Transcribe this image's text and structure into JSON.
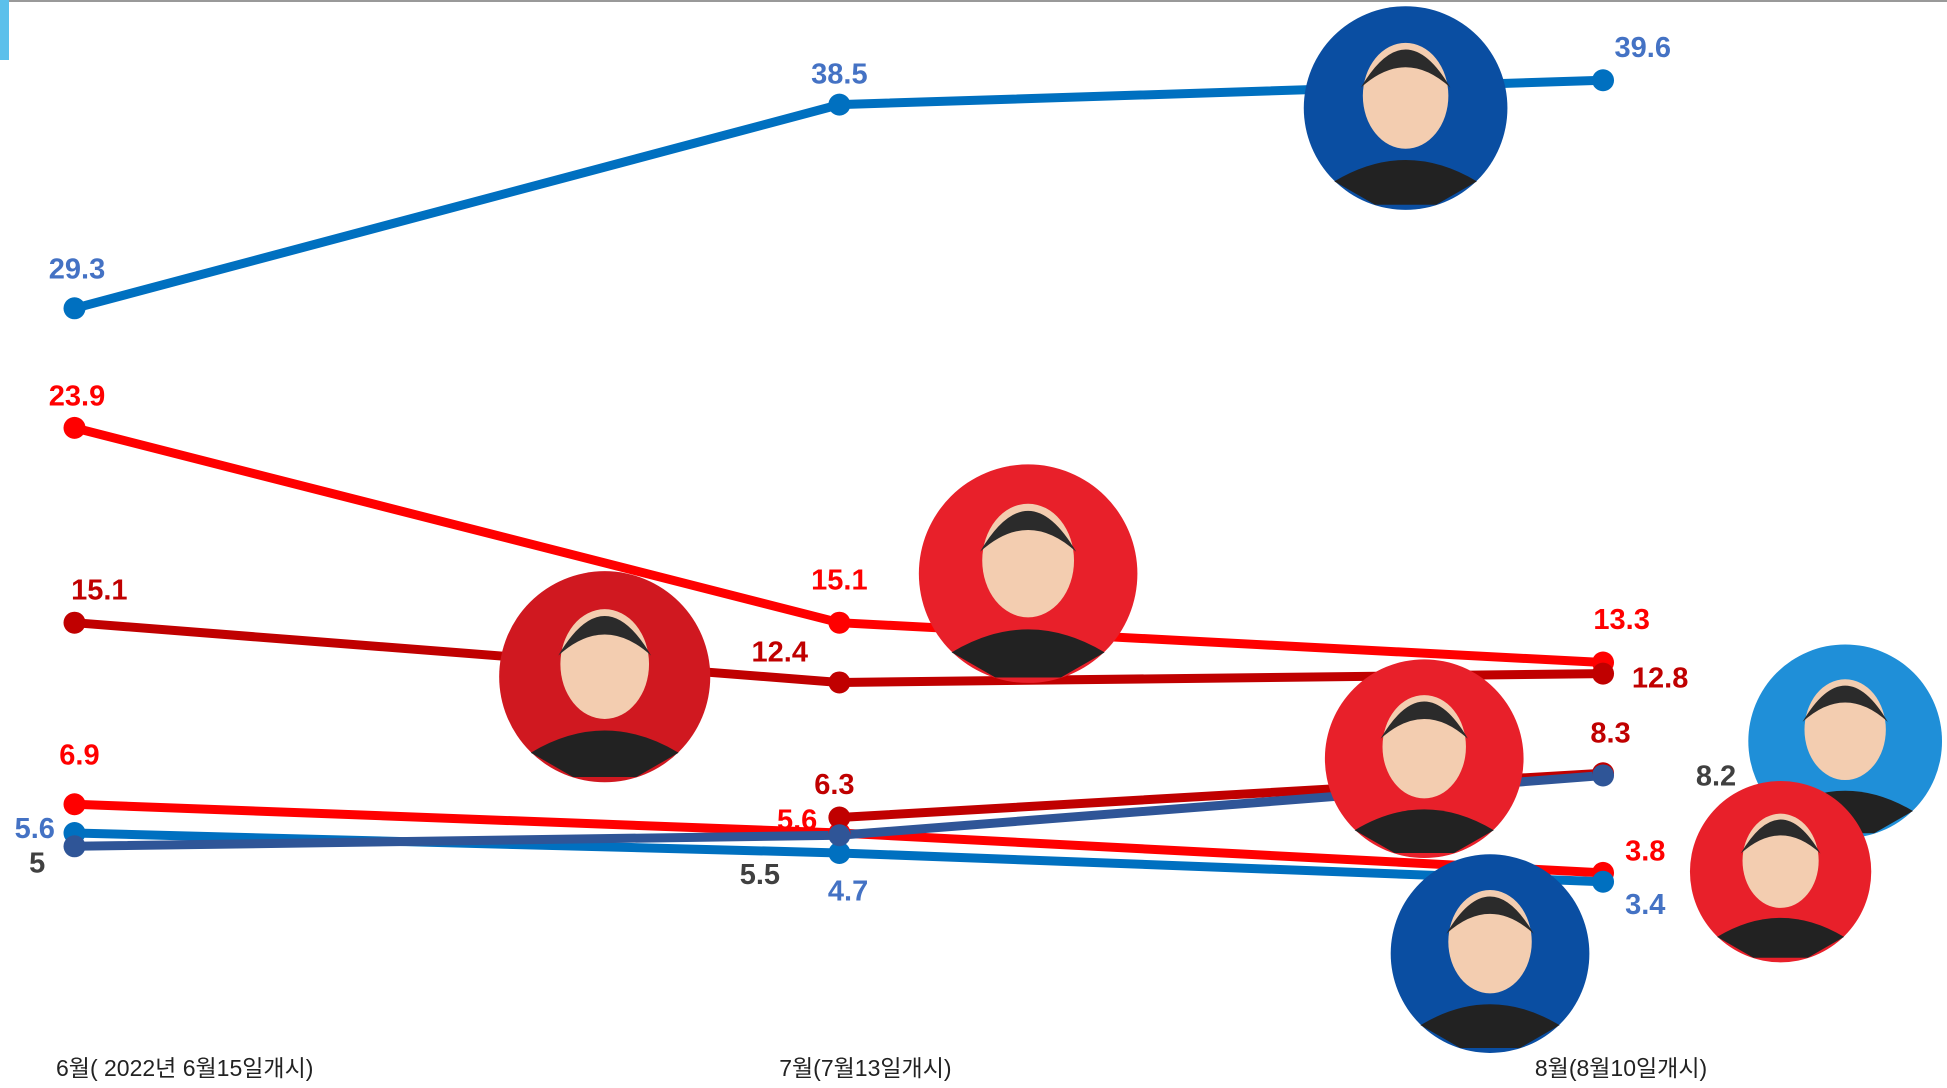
{
  "chart_data": {
    "type": "line",
    "categories": [
      "6월( 2022년 6월15일개시)",
      "7월(7월13일개시)",
      "8월(8월10일개시)"
    ],
    "ylim": [
      0,
      43
    ],
    "series": [
      {
        "color": "#0070c0",
        "label_color": "#4472c4",
        "values": [
          29.3,
          38.5,
          39.6
        ]
      },
      {
        "color": "#ff0000",
        "label_color": "#ff0000",
        "values": [
          23.9,
          15.1,
          13.3
        ]
      },
      {
        "color": "#c00000",
        "label_color": "#c00000",
        "values": [
          15.1,
          12.4,
          12.8
        ]
      },
      {
        "color": "#ff0000",
        "label_color": "#ff0000",
        "values": [
          6.9,
          5.6,
          3.8
        ]
      },
      {
        "color": "#c00000",
        "label_color": "#c00000",
        "values": [
          null,
          6.3,
          8.3
        ]
      },
      {
        "color": "#0070c0",
        "label_color": "#4472c4",
        "values": [
          5.6,
          4.7,
          3.4
        ]
      },
      {
        "color": "#2f5597",
        "label_color": "#404040",
        "values": [
          5,
          5.5,
          8.2
        ]
      }
    ]
  }
}
